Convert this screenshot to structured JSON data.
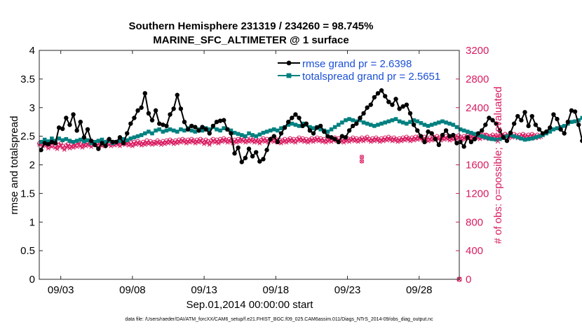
{
  "chart_data": {
    "type": "line",
    "title": "Southern Hemisphere 231319 / 234260 = 98.745%",
    "subtitle": "MARINE_SFC_ALTIMETER @ 1 surface",
    "xlabel": "Sep.01,2014 00:00:00 start",
    "ylabel_left": "rmse and totalspread",
    "ylabel_right": "# of obs: o=possible; ×=evaluated",
    "footer": "data file: /Users/raeder/DAI/ATM_forcXX/CAM6_setup/f.e21.FHIST_BGC.f09_025.CAM6assim.011/Diags_NTrS_2014-09/obs_diag_output.nc",
    "xlim": [
      1.5,
      30.8
    ],
    "ylim_left": [
      0,
      4
    ],
    "ylim_right": [
      0,
      3200
    ],
    "x_ticks": [
      3,
      8,
      13,
      18,
      23,
      28
    ],
    "x_tick_labels": [
      "09/03",
      "09/08",
      "09/13",
      "09/18",
      "09/23",
      "09/28"
    ],
    "y_ticks_left": [
      0,
      0.5,
      1,
      1.5,
      2,
      2.5,
      3,
      3.5,
      4
    ],
    "y_tick_labels_left": [
      "0",
      "0.5",
      "1",
      "1.5",
      "2",
      "2.5",
      "3",
      "3.5",
      "4"
    ],
    "y_ticks_right": [
      0,
      400,
      800,
      1200,
      1600,
      2000,
      2400,
      2800,
      3200
    ],
    "y_tick_labels_right": [
      "0",
      "400",
      "800",
      "1200",
      "1600",
      "2000",
      "2400",
      "2800",
      "3200"
    ],
    "colors": {
      "rmse": "#000000",
      "spread": "#008080",
      "obs": "#d81b60",
      "legend_text": "#1a4fd6"
    },
    "series": [
      {
        "name": "rmse grand pr = 2.6398",
        "axis": "left",
        "x_start": 1.625,
        "x_step": 0.25,
        "values": [
          2.26,
          2.38,
          2.36,
          2.4,
          2.38,
          2.65,
          2.63,
          2.82,
          2.7,
          2.88,
          2.6,
          2.75,
          2.48,
          2.62,
          2.42,
          2.35,
          2.28,
          2.38,
          2.33,
          2.45,
          2.4,
          2.4,
          2.48,
          2.38,
          2.55,
          2.72,
          2.82,
          2.95,
          3.0,
          3.25,
          2.9,
          2.78,
          2.95,
          2.72,
          2.7,
          2.68,
          2.88,
          2.98,
          3.22,
          2.98,
          2.75,
          2.62,
          2.68,
          2.66,
          2.6,
          2.66,
          2.62,
          2.55,
          2.68,
          2.75,
          2.77,
          2.78,
          2.62,
          2.55,
          2.2,
          2.3,
          2.05,
          2.12,
          2.28,
          2.15,
          2.22,
          2.06,
          2.1,
          2.26,
          2.45,
          2.5,
          2.4,
          2.55,
          2.65,
          2.75,
          2.82,
          2.88,
          2.82,
          2.68,
          2.72,
          2.6,
          2.55,
          2.65,
          2.68,
          2.58,
          2.5,
          2.48,
          2.45,
          2.4,
          2.5,
          2.48,
          2.6,
          2.68,
          2.72,
          2.82,
          2.9,
          3.0,
          3.05,
          3.18,
          3.25,
          3.3,
          3.2,
          3.1,
          3.05,
          3.15,
          2.98,
          3.02,
          3.05,
          2.9,
          2.7,
          2.6,
          2.5,
          2.4,
          2.58,
          2.55,
          2.45,
          2.35,
          2.52,
          2.6,
          2.5,
          2.52,
          2.38,
          2.4,
          2.32,
          2.48,
          2.4,
          2.45,
          2.55,
          2.6,
          2.7,
          2.82,
          2.78,
          2.72,
          2.6,
          2.48,
          2.42,
          2.56,
          2.72,
          2.85,
          2.78,
          2.92,
          2.68,
          2.85,
          2.7,
          2.62,
          2.55,
          2.58,
          2.65,
          2.88,
          2.8,
          2.62,
          2.55,
          2.75,
          2.95,
          2.93,
          2.7,
          2.42,
          2.48,
          2.55,
          2.35,
          2.28,
          2.4,
          2.24,
          2.1,
          2.18,
          2.36,
          2.34,
          2.38,
          2.35,
          2.02,
          2.08,
          2.1
        ]
      },
      {
        "name": "totalspread grand pr = 2.5651",
        "axis": "left",
        "x_start": 1.625,
        "x_step": 0.25,
        "values": [
          2.4,
          2.44,
          2.41,
          2.46,
          2.42,
          2.46,
          2.43,
          2.45,
          2.42,
          2.4,
          2.42,
          2.44,
          2.41,
          2.43,
          2.38,
          2.4,
          2.42,
          2.44,
          2.4,
          2.42,
          2.38,
          2.4,
          2.42,
          2.45,
          2.43,
          2.46,
          2.48,
          2.5,
          2.52,
          2.55,
          2.58,
          2.55,
          2.6,
          2.62,
          2.58,
          2.6,
          2.62,
          2.6,
          2.58,
          2.62,
          2.6,
          2.64,
          2.6,
          2.58,
          2.62,
          2.6,
          2.64,
          2.62,
          2.66,
          2.62,
          2.6,
          2.64,
          2.62,
          2.6,
          2.56,
          2.54,
          2.52,
          2.5,
          2.55,
          2.52,
          2.5,
          2.53,
          2.56,
          2.58,
          2.6,
          2.62,
          2.6,
          2.64,
          2.66,
          2.7,
          2.72,
          2.7,
          2.68,
          2.72,
          2.7,
          2.66,
          2.64,
          2.66,
          2.62,
          2.6,
          2.58,
          2.62,
          2.66,
          2.7,
          2.74,
          2.78,
          2.8,
          2.78,
          2.76,
          2.78,
          2.74,
          2.72,
          2.7,
          2.68,
          2.7,
          2.72,
          2.74,
          2.76,
          2.78,
          2.8,
          2.76,
          2.74,
          2.72,
          2.75,
          2.78,
          2.76,
          2.73,
          2.7,
          2.68,
          2.7,
          2.72,
          2.74,
          2.76,
          2.74,
          2.72,
          2.7,
          2.66,
          2.62,
          2.6,
          2.58,
          2.56,
          2.54,
          2.52,
          2.5,
          2.48,
          2.46,
          2.45,
          2.44,
          2.45,
          2.47,
          2.5,
          2.52,
          2.5,
          2.48,
          2.46,
          2.44,
          2.45,
          2.46,
          2.48,
          2.5,
          2.52,
          2.55,
          2.58,
          2.62,
          2.64,
          2.66,
          2.68,
          2.72,
          2.75,
          2.76,
          2.78,
          2.82,
          2.85,
          2.88,
          2.9,
          2.9,
          2.92,
          2.94,
          2.94,
          2.92,
          2.9,
          2.86,
          2.8,
          2.7,
          2.55,
          2.42,
          2.38
        ]
      },
      {
        "name": "obs possible",
        "axis": "right",
        "x_start": 1.5,
        "x_step": 0.125,
        "values": [
          1900,
          1920,
          1880,
          1910,
          1890,
          1850,
          1900,
          1870,
          1920,
          1860,
          1840,
          1880,
          1900,
          1860,
          1830,
          1870,
          1890,
          1850,
          1880,
          1860,
          1900,
          1870,
          1920,
          1880,
          1860,
          1900,
          1880,
          1910,
          1890,
          1870,
          1900,
          1920,
          1890,
          1870,
          1900,
          1880,
          1910,
          1890,
          1930,
          1900,
          1880,
          1910,
          1890,
          1920,
          1900,
          1880,
          1910,
          1930,
          1900,
          1920,
          1890,
          1910,
          1880,
          1920,
          1900,
          1930,
          1910,
          1890,
          1920,
          1900,
          1940,
          1910,
          1930,
          1900,
          1920,
          1910,
          1940,
          1920,
          1900,
          1930,
          1910,
          1940,
          1920,
          1950,
          1930,
          1910,
          1940,
          1920,
          1950,
          1930,
          1960,
          1940,
          1920,
          1950,
          1930,
          1960,
          1940,
          1920,
          1950,
          1930,
          1960,
          1940,
          1910,
          1950,
          1930,
          1900,
          1940,
          1960,
          1930,
          1950,
          1920,
          1960,
          1940,
          1970,
          1950,
          1930,
          1960,
          1940,
          1920,
          1950,
          1930,
          1960,
          1940,
          1980,
          1950,
          1930,
          1960,
          1940,
          1970,
          1950,
          1930,
          1960,
          1940,
          1920,
          1950,
          1970,
          1940,
          1960,
          1930,
          1950,
          1970,
          1940,
          1960,
          1930,
          1950,
          1920,
          1940,
          1960,
          1930,
          1950,
          1970,
          1940,
          1960,
          1930,
          1960,
          1980,
          1950,
          1970,
          1940,
          1960,
          1930,
          1950,
          1970,
          1940,
          1960,
          1980,
          1950,
          1970,
          1940,
          1960,
          1930,
          1950,
          1970,
          1940,
          1960,
          1980,
          1950,
          1970,
          1940,
          1960,
          1930,
          1950,
          1970,
          1940,
          1960,
          1980,
          1950,
          1970,
          1940,
          1960,
          1980,
          1950,
          1970,
          1990,
          1960,
          1940,
          1970,
          1950,
          1980,
          1960,
          1940,
          1970,
          1950,
          1980,
          1960,
          1990,
          1970,
          1950,
          1980,
          1960,
          1940,
          1970,
          1950,
          1980,
          1960,
          1990,
          1970,
          1950,
          1980,
          1960,
          1990,
          1970,
          2000,
          1980,
          1960,
          1990,
          1970,
          1950,
          1980,
          1960,
          1990,
          1970,
          2000,
          1980,
          1960,
          1990,
          1970,
          2000,
          1980,
          1960,
          1990,
          1970,
          2000,
          1980,
          2010,
          1990,
          1970,
          2000,
          1980,
          2010,
          1990,
          1970,
          2000,
          2020,
          1990,
          2010,
          1980,
          2000,
          2020,
          1990,
          2010,
          1980,
          2000,
          2020,
          1990,
          2010,
          1980,
          2000,
          2020,
          2000,
          2030,
          2010,
          1990,
          2020,
          2000,
          2030,
          2010,
          1990,
          2020,
          2000,
          2030,
          2010,
          1990,
          2020,
          2000,
          2030,
          2010,
          1990,
          2020,
          2000,
          2010
        ]
      },
      {
        "name": "obs evaluated",
        "axis": "right",
        "x_start": 1.5,
        "x_step": 0.125,
        "values": [
          1880,
          1900,
          1860,
          1890,
          1870,
          1830,
          1880,
          1850,
          1900,
          1840,
          1820,
          1860,
          1880,
          1840,
          1810,
          1850,
          1870,
          1830,
          1860,
          1840,
          1880,
          1850,
          1900,
          1860,
          1840,
          1880,
          1860,
          1890,
          1870,
          1850,
          1880,
          1900,
          1870,
          1850,
          1880,
          1860,
          1890,
          1870,
          1910,
          1880,
          1860,
          1890,
          1870,
          1900,
          1880,
          1860,
          1890,
          1910,
          1880,
          1900,
          1870,
          1890,
          1860,
          1900,
          1880,
          1910,
          1890,
          1870,
          1900,
          1880,
          1920,
          1890,
          1910,
          1880,
          1900,
          1890,
          1920,
          1900,
          1880,
          1910,
          1890,
          1920,
          1900,
          1930,
          1910,
          1890,
          1920,
          1900,
          1930,
          1910,
          1940,
          1920,
          1900,
          1930,
          1910,
          1940,
          1920,
          1900,
          1930,
          1910,
          1940,
          1920,
          1890,
          1930,
          1910,
          1880,
          1920,
          1940,
          1910,
          1930,
          1900,
          1940,
          1920,
          1950,
          1930,
          1910,
          1940,
          1920,
          1900,
          1930,
          1910,
          1940,
          1920,
          1960,
          1930,
          1910,
          1940,
          1920,
          1950,
          1930,
          1910,
          1940,
          1920,
          1900,
          1930,
          1950,
          1920,
          1940,
          1910,
          1930,
          1950,
          1920,
          1940,
          1910,
          1930,
          1900,
          1920,
          1940,
          1910,
          1930,
          1950,
          1920,
          1940,
          1910,
          1940,
          1960,
          1930,
          1950,
          1920,
          1940,
          1910,
          1930,
          1950,
          1920,
          1940,
          1960,
          1930,
          1950,
          1920,
          1940,
          1910,
          1930,
          1950,
          1920,
          1940,
          1960,
          1930,
          1950,
          1920,
          1940,
          1910,
          1930,
          1950,
          1920,
          1940,
          1960,
          1930,
          1950,
          1920,
          1940,
          1960,
          1930,
          1950,
          1970,
          1940,
          1920,
          1950,
          1930,
          1960,
          1940,
          1920,
          1950,
          1930,
          1960,
          1940,
          1970,
          1950,
          1930,
          1960,
          1940,
          1920,
          1950,
          1930,
          1960,
          1940,
          1970,
          1950,
          1930,
          1960,
          1940,
          1970,
          1950,
          1980,
          1960,
          1940,
          1970,
          1950,
          1930,
          1960,
          1940,
          1970,
          1950,
          1980,
          1960,
          1940,
          1970,
          1950,
          1980,
          1960,
          1940,
          1970,
          1950,
          1980,
          1960,
          1990,
          1970,
          1950,
          1980,
          1960,
          1990,
          1970,
          1950,
          1980,
          2000,
          1970,
          1990,
          1960,
          1980,
          2000,
          1970,
          1990,
          1960,
          1980,
          2000,
          1970,
          1990,
          1960,
          1980,
          2000,
          1980,
          2010,
          1990,
          1970,
          2000,
          1980,
          2010,
          1990,
          1970,
          2000,
          1980,
          2010,
          1990,
          1970,
          2000,
          1980,
          2010,
          1990,
          1970,
          2000,
          1980,
          1990
        ]
      },
      {
        "name": "obs outliers",
        "axis": "right",
        "points": [
          {
            "x": 24.0,
            "y": 1710
          },
          {
            "x": 24.0,
            "y": 1650
          }
        ]
      }
    ],
    "corner_marker": {
      "x": 30.8,
      "y": 0
    }
  }
}
